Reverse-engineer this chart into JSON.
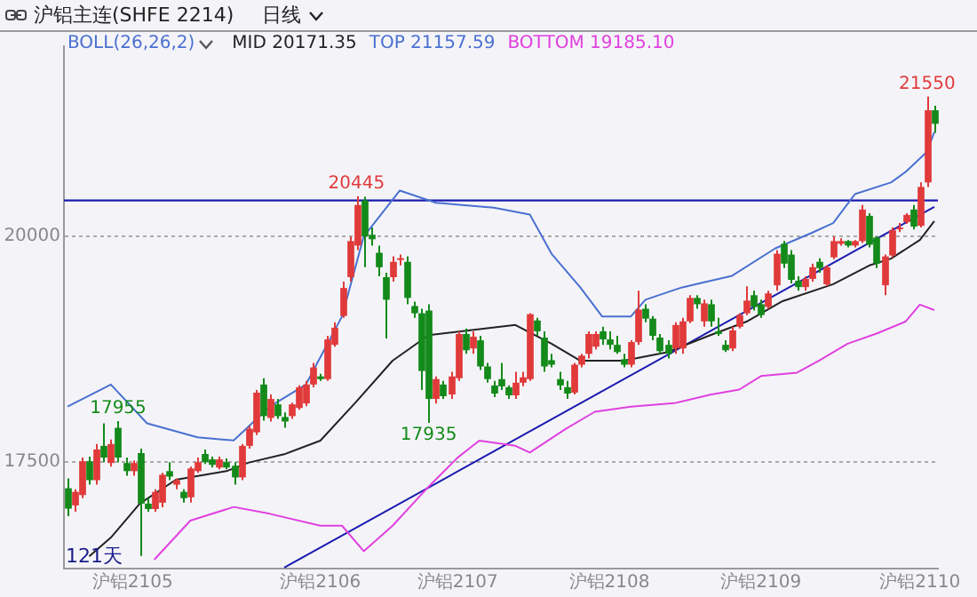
{
  "chart_data": {
    "type": "candlestick",
    "title": "沪铝主连(SHFE 2214)",
    "subtitle": "日线",
    "legend_title": "BOLL(26,26,2)",
    "legend": "top left",
    "grid": "y",
    "ylim": [
      16320,
      22110
    ],
    "yticks": [
      17500,
      20000
    ],
    "categories": [
      null,
      null,
      null,
      null,
      null,
      null,
      null,
      null,
      null,
      "沪铝2105",
      null,
      null,
      null,
      null,
      null,
      null,
      null,
      null,
      null,
      null,
      null,
      null,
      null,
      null,
      null,
      null,
      null,
      null,
      null,
      null,
      null,
      null,
      null,
      null,
      null,
      "沪铝2106",
      null,
      null,
      null,
      null,
      null,
      null,
      null,
      null,
      null,
      null,
      null,
      null,
      null,
      null,
      null,
      null,
      null,
      null,
      "沪铝2107",
      null,
      null,
      null,
      null,
      null,
      null,
      null,
      null,
      null,
      null,
      null,
      null,
      null,
      null,
      null,
      null,
      null,
      null,
      null,
      null,
      "沪铝2108",
      null,
      null,
      null,
      null,
      null,
      null,
      null,
      null,
      null,
      null,
      null,
      null,
      null,
      null,
      null,
      null,
      null,
      null,
      null,
      null,
      "沪铝2109",
      null,
      null,
      null,
      null,
      null,
      null,
      null,
      null,
      null,
      null,
      null,
      null,
      null,
      null,
      null,
      null,
      null,
      null,
      null,
      null,
      null,
      "沪铝2110",
      null,
      null
    ],
    "ohlc": [
      [
        17210,
        17320,
        16900,
        16984
      ],
      [
        17020,
        17200,
        16950,
        17170
      ],
      [
        17135,
        17550,
        17100,
        17510
      ],
      [
        17510,
        17560,
        17250,
        17300
      ],
      [
        17300,
        17700,
        17250,
        17640
      ],
      [
        17680,
        17930,
        17500,
        17550
      ],
      [
        17490,
        17750,
        17450,
        17700
      ],
      [
        17880,
        17955,
        17500,
        17550
      ],
      [
        17490,
        17550,
        17350,
        17400
      ],
      [
        17400,
        17520,
        17350,
        17490
      ],
      [
        17600,
        17650,
        16460,
        17040
      ],
      [
        17040,
        17100,
        16950,
        16980
      ],
      [
        16980,
        17200,
        16950,
        17170
      ],
      [
        17050,
        17380,
        17000,
        17360
      ],
      [
        17400,
        17500,
        17300,
        17340
      ],
      [
        17250,
        17320,
        17200,
        17300
      ],
      [
        17170,
        17200,
        17050,
        17100
      ],
      [
        17110,
        17450,
        17050,
        17430
      ],
      [
        17400,
        17550,
        17380,
        17500
      ],
      [
        17590,
        17640,
        17480,
        17500
      ],
      [
        17530,
        17560,
        17440,
        17470
      ],
      [
        17440,
        17560,
        17420,
        17530
      ],
      [
        17500,
        17540,
        17420,
        17440
      ],
      [
        17460,
        17500,
        17250,
        17330
      ],
      [
        17330,
        17700,
        17300,
        17680
      ],
      [
        17680,
        17900,
        17650,
        17870
      ],
      [
        17830,
        18300,
        17800,
        18270
      ],
      [
        18360,
        18430,
        17960,
        18010
      ],
      [
        17990,
        18250,
        17950,
        18200
      ],
      [
        18140,
        18200,
        17980,
        18010
      ],
      [
        18000,
        18050,
        17880,
        17950
      ],
      [
        18010,
        18160,
        17980,
        18140
      ],
      [
        18100,
        18350,
        18080,
        18330
      ],
      [
        18150,
        18400,
        18120,
        18360
      ],
      [
        18360,
        18600,
        18330,
        18550
      ],
      [
        18450,
        18480,
        18400,
        18420
      ],
      [
        18420,
        18900,
        18400,
        18860
      ],
      [
        18800,
        19050,
        18780,
        18990
      ],
      [
        19120,
        19500,
        19100,
        19430
      ],
      [
        19550,
        20000,
        19500,
        19950
      ],
      [
        19900,
        20445,
        19850,
        20350
      ],
      [
        20400,
        20440,
        19660,
        20000
      ],
      [
        20020,
        20100,
        19900,
        19970
      ],
      [
        19820,
        19900,
        19560,
        19660
      ],
      [
        19550,
        19600,
        18870,
        19300
      ],
      [
        19550,
        19780,
        19500,
        19720
      ],
      [
        19740,
        19800,
        19680,
        19760
      ],
      [
        19720,
        19780,
        19250,
        19320
      ],
      [
        19230,
        19280,
        19100,
        19150
      ],
      [
        19150,
        19200,
        18300,
        18510
      ],
      [
        19180,
        19250,
        17935,
        18200
      ],
      [
        18200,
        18450,
        18150,
        18420
      ],
      [
        18360,
        18400,
        18200,
        18230
      ],
      [
        18250,
        18500,
        18200,
        18450
      ],
      [
        18430,
        18950,
        18400,
        18920
      ],
      [
        18920,
        18980,
        18700,
        18740
      ],
      [
        18760,
        18950,
        18700,
        18890
      ],
      [
        18850,
        18900,
        18520,
        18560
      ],
      [
        18560,
        18600,
        18380,
        18420
      ],
      [
        18350,
        18400,
        18220,
        18260
      ],
      [
        18420,
        18600,
        18300,
        18340
      ],
      [
        18330,
        18350,
        18200,
        18240
      ],
      [
        18240,
        18500,
        18200,
        18380
      ],
      [
        18380,
        18500,
        18340,
        18440
      ],
      [
        18420,
        19150,
        18400,
        19140
      ],
      [
        19070,
        19100,
        18900,
        18950
      ],
      [
        18880,
        18950,
        18500,
        18560
      ],
      [
        18630,
        18700,
        18550,
        18580
      ],
      [
        18420,
        18500,
        18300,
        18350
      ],
      [
        18330,
        18400,
        18200,
        18260
      ],
      [
        18270,
        18600,
        18250,
        18580
      ],
      [
        18580,
        18700,
        18550,
        18680
      ],
      [
        18700,
        18950,
        18650,
        18920
      ],
      [
        18780,
        18950,
        18750,
        18920
      ],
      [
        18950,
        19000,
        18800,
        18860
      ],
      [
        18860,
        18950,
        18750,
        18800
      ],
      [
        18800,
        18900,
        18700,
        18720
      ],
      [
        18640,
        18700,
        18550,
        18580
      ],
      [
        18580,
        18850,
        18550,
        18830
      ],
      [
        18830,
        19400,
        18800,
        19190
      ],
      [
        19200,
        19250,
        19050,
        19090
      ],
      [
        19090,
        19120,
        18850,
        18900
      ],
      [
        18880,
        18920,
        18700,
        18730
      ],
      [
        18800,
        18850,
        18650,
        18700
      ],
      [
        18760,
        19050,
        18700,
        19020
      ],
      [
        18760,
        19100,
        18700,
        19060
      ],
      [
        19060,
        19350,
        19040,
        19320
      ],
      [
        19320,
        19350,
        19200,
        19250
      ],
      [
        19060,
        19300,
        19000,
        19260
      ],
      [
        19250,
        19300,
        19000,
        19060
      ],
      [
        18950,
        19100,
        18900,
        18920
      ],
      [
        18800,
        18850,
        18720,
        18740
      ],
      [
        18760,
        19000,
        18730,
        18960
      ],
      [
        19000,
        19150,
        18980,
        19130
      ],
      [
        19150,
        19450,
        19130,
        19290
      ],
      [
        19350,
        19400,
        19180,
        19220
      ],
      [
        19250,
        19300,
        19100,
        19130
      ],
      [
        19220,
        19400,
        19200,
        19370
      ],
      [
        19460,
        19850,
        19400,
        19810
      ],
      [
        19920,
        19950,
        19650,
        19700
      ],
      [
        19800,
        19850,
        19480,
        19520
      ],
      [
        19510,
        19560,
        19400,
        19440
      ],
      [
        19440,
        19560,
        19400,
        19530
      ],
      [
        19530,
        19700,
        19500,
        19660
      ],
      [
        19720,
        19760,
        19600,
        19650
      ],
      [
        19470,
        19680,
        19450,
        19660
      ],
      [
        19770,
        20000,
        19750,
        19950
      ],
      [
        19920,
        19980,
        19900,
        19950
      ],
      [
        19950,
        19960,
        19880,
        19900
      ],
      [
        19900,
        19960,
        19880,
        19950
      ],
      [
        19950,
        20350,
        19930,
        20300
      ],
      [
        20230,
        20260,
        19880,
        19910
      ],
      [
        19990,
        20000,
        19650,
        19700
      ],
      [
        19460,
        19800,
        19350,
        19780
      ],
      [
        19790,
        20100,
        19770,
        20070
      ],
      [
        20080,
        20150,
        20050,
        20100
      ],
      [
        20160,
        20260,
        20140,
        20240
      ],
      [
        20300,
        20350,
        20080,
        20110
      ],
      [
        20120,
        20600,
        20100,
        20550
      ],
      [
        20600,
        21550,
        20550,
        21400
      ],
      [
        21400,
        21450,
        21150,
        21250
      ]
    ],
    "colors": [
      "#138a1a",
      "#e03a3a",
      "#e03a3a",
      "#138a1a",
      "#e03a3a",
      "#138a1a",
      "#e03a3a",
      "#138a1a",
      "#138a1a",
      "#e03a3a",
      "#138a1a",
      "#138a1a",
      "#e03a3a",
      "#e03a3a",
      "#138a1a",
      "#e03a3a",
      "#138a1a",
      "#e03a3a",
      "#e03a3a",
      "#138a1a",
      "#138a1a",
      "#e03a3a",
      "#138a1a",
      "#138a1a",
      "#e03a3a",
      "#e03a3a",
      "#e03a3a",
      "#138a1a",
      "#e03a3a",
      "#138a1a",
      "#138a1a",
      "#e03a3a",
      "#e03a3a",
      "#e03a3a",
      "#e03a3a",
      "#138a1a",
      "#e03a3a",
      "#e03a3a",
      "#e03a3a",
      "#e03a3a",
      "#e03a3a",
      "#138a1a",
      "#138a1a",
      "#138a1a",
      "#138a1a",
      "#e03a3a",
      "#e03a3a",
      "#138a1a",
      "#138a1a",
      "#138a1a",
      "#138a1a",
      "#e03a3a",
      "#138a1a",
      "#e03a3a",
      "#e03a3a",
      "#138a1a",
      "#e03a3a",
      "#138a1a",
      "#138a1a",
      "#138a1a",
      "#138a1a",
      "#138a1a",
      "#e03a3a",
      "#e03a3a",
      "#e03a3a",
      "#138a1a",
      "#138a1a",
      "#138a1a",
      "#138a1a",
      "#138a1a",
      "#e03a3a",
      "#e03a3a",
      "#e03a3a",
      "#e03a3a",
      "#138a1a",
      "#138a1a",
      "#138a1a",
      "#138a1a",
      "#e03a3a",
      "#e03a3a",
      "#138a1a",
      "#138a1a",
      "#138a1a",
      "#138a1a",
      "#e03a3a",
      "#e03a3a",
      "#e03a3a",
      "#138a1a",
      "#e03a3a",
      "#138a1a",
      "#138a1a",
      "#138a1a",
      "#e03a3a",
      "#e03a3a",
      "#e03a3a",
      "#138a1a",
      "#138a1a",
      "#e03a3a",
      "#e03a3a",
      "#138a1a",
      "#138a1a",
      "#138a1a",
      "#e03a3a",
      "#e03a3a",
      "#138a1a",
      "#e03a3a",
      "#e03a3a",
      "#e03a3a",
      "#138a1a",
      "#e03a3a",
      "#e03a3a",
      "#138a1a",
      "#138a1a",
      "#e03a3a",
      "#e03a3a",
      "#e03a3a",
      "#e03a3a",
      "#138a1a",
      "#e03a3a",
      "#e03a3a",
      "#138a1a"
    ],
    "series": [
      {
        "type": "line",
        "name": "MID 20171.35",
        "color": "#222222",
        "values": [
          null,
          null,
          null,
          16456,
          null,
          null,
          16664,
          null,
          null,
          null,
          17040,
          null,
          null,
          null,
          null,
          17305,
          null,
          null,
          null,
          null,
          null,
          null,
          17400,
          null,
          null,
          17493,
          null,
          null,
          null,
          null,
          17587,
          null,
          null,
          null,
          null,
          17738,
          null,
          null,
          null,
          null,
          18172,
          null,
          null,
          null,
          null,
          18624,
          null,
          null,
          null,
          null,
          18907,
          null,
          null,
          null,
          null,
          null,
          18963,
          null,
          null,
          null,
          null,
          null,
          19020,
          null,
          null,
          null,
          null,
          18812,
          null,
          null,
          null,
          18624,
          null,
          null,
          null,
          null,
          null,
          18624,
          null,
          null,
          null,
          null,
          null,
          18718,
          null,
          null,
          null,
          null,
          null,
          18907,
          null,
          null,
          null,
          null,
          19057,
          null,
          null,
          null,
          null,
          19284,
          null,
          null,
          null,
          null,
          null,
          null,
          19472,
          null,
          null,
          null,
          null,
          19680,
          null,
          null,
          19755,
          null,
          null,
          null,
          19962,
          null,
          20171
        ]
      },
      {
        "type": "line",
        "name": "TOP 21157.59",
        "color": "#4a70d0",
        "values": [
          18115,
          null,
          null,
          null,
          null,
          null,
          18360,
          null,
          null,
          null,
          null,
          17930,
          null,
          null,
          null,
          null,
          null,
          null,
          17775,
          null,
          null,
          null,
          null,
          17740,
          null,
          null,
          null,
          null,
          18115,
          null,
          null,
          null,
          null,
          18360,
          null,
          null,
          null,
          null,
          19115,
          null,
          null,
          20000,
          null,
          null,
          null,
          null,
          20510,
          null,
          null,
          null,
          null,
          20375,
          null,
          null,
          null,
          null,
          null,
          null,
          null,
          20320,
          null,
          null,
          null,
          null,
          20245,
          null,
          null,
          19810,
          null,
          null,
          null,
          19435,
          null,
          null,
          19115,
          null,
          null,
          null,
          19115,
          null,
          19300,
          null,
          null,
          null,
          null,
          19435,
          null,
          null,
          19490,
          null,
          null,
          null,
          19565,
          null,
          null,
          null,
          null,
          null,
          19870,
          null,
          null,
          null,
          null,
          20040,
          null,
          null,
          20150,
          null,
          null,
          20470,
          null,
          null,
          null,
          null,
          20600,
          null,
          20715,
          null,
          null,
          20940,
          21158
        ]
      },
      {
        "type": "line",
        "name": "BOTTOM 19185.10",
        "color": "#e040e0",
        "values": [
          null,
          null,
          null,
          null,
          null,
          null,
          null,
          null,
          null,
          null,
          null,
          null,
          16418,
          null,
          null,
          null,
          null,
          16852,
          null,
          null,
          null,
          null,
          null,
          17003,
          null,
          null,
          null,
          null,
          16927,
          null,
          null,
          null,
          null,
          null,
          null,
          16795,
          null,
          null,
          16795,
          null,
          null,
          16513,
          null,
          null,
          null,
          16795,
          null,
          null,
          null,
          null,
          17229,
          null,
          null,
          null,
          17550,
          null,
          null,
          17738,
          null,
          null,
          null,
          null,
          17681,
          null,
          17606,
          null,
          null,
          null,
          null,
          17870,
          null,
          null,
          null,
          18058,
          null,
          null,
          null,
          null,
          18115,
          null,
          null,
          null,
          null,
          null,
          18153,
          null,
          null,
          null,
          null,
          18247,
          null,
          null,
          null,
          18304,
          null,
          null,
          18454,
          null,
          null,
          null,
          null,
          18492,
          null,
          null,
          18624,
          null,
          null,
          null,
          18812,
          null,
          null,
          null,
          18925,
          null,
          null,
          null,
          19057,
          null,
          19246,
          null,
          19185
        ]
      },
      {
        "type": "line",
        "color": "#1a1ab0",
        "values": [
          null,
          null,
          null,
          null,
          null,
          null,
          null,
          null,
          null,
          null,
          null,
          null,
          null,
          null,
          null,
          null,
          null,
          null,
          null,
          null,
          null,
          null,
          null,
          null,
          null,
          null,
          null,
          null,
          null,
          null,
          16330,
          null,
          null,
          null,
          null,
          null,
          null,
          null,
          null,
          null,
          null,
          null,
          null,
          null,
          null,
          null,
          null,
          null,
          null,
          null,
          null,
          null,
          null,
          null,
          null,
          null,
          null,
          null,
          null,
          null,
          null,
          null,
          null,
          null,
          null,
          null,
          null,
          null,
          null,
          null,
          null,
          null,
          null,
          null,
          null,
          null,
          null,
          null,
          null,
          null,
          null,
          null,
          null,
          null,
          null,
          null,
          null,
          null,
          null,
          null,
          null,
          null,
          null,
          null,
          null,
          null,
          null,
          null,
          null,
          null,
          null,
          null,
          null,
          null,
          null,
          null,
          null,
          null,
          null,
          null,
          null,
          null,
          null,
          null,
          null,
          null,
          null,
          null,
          null,
          null,
          20330
        ]
      }
    ],
    "ref_lines": [
      {
        "axis": "y",
        "value": 20400,
        "color": "#1a1ab0"
      }
    ],
    "annotations": [
      {
        "text": "20445",
        "y": 20445
      },
      {
        "text": "17955",
        "y": 17955
      },
      {
        "text": "17935",
        "y": 17935
      },
      {
        "text": "21550",
        "y": 21550
      },
      "121天"
    ]
  }
}
